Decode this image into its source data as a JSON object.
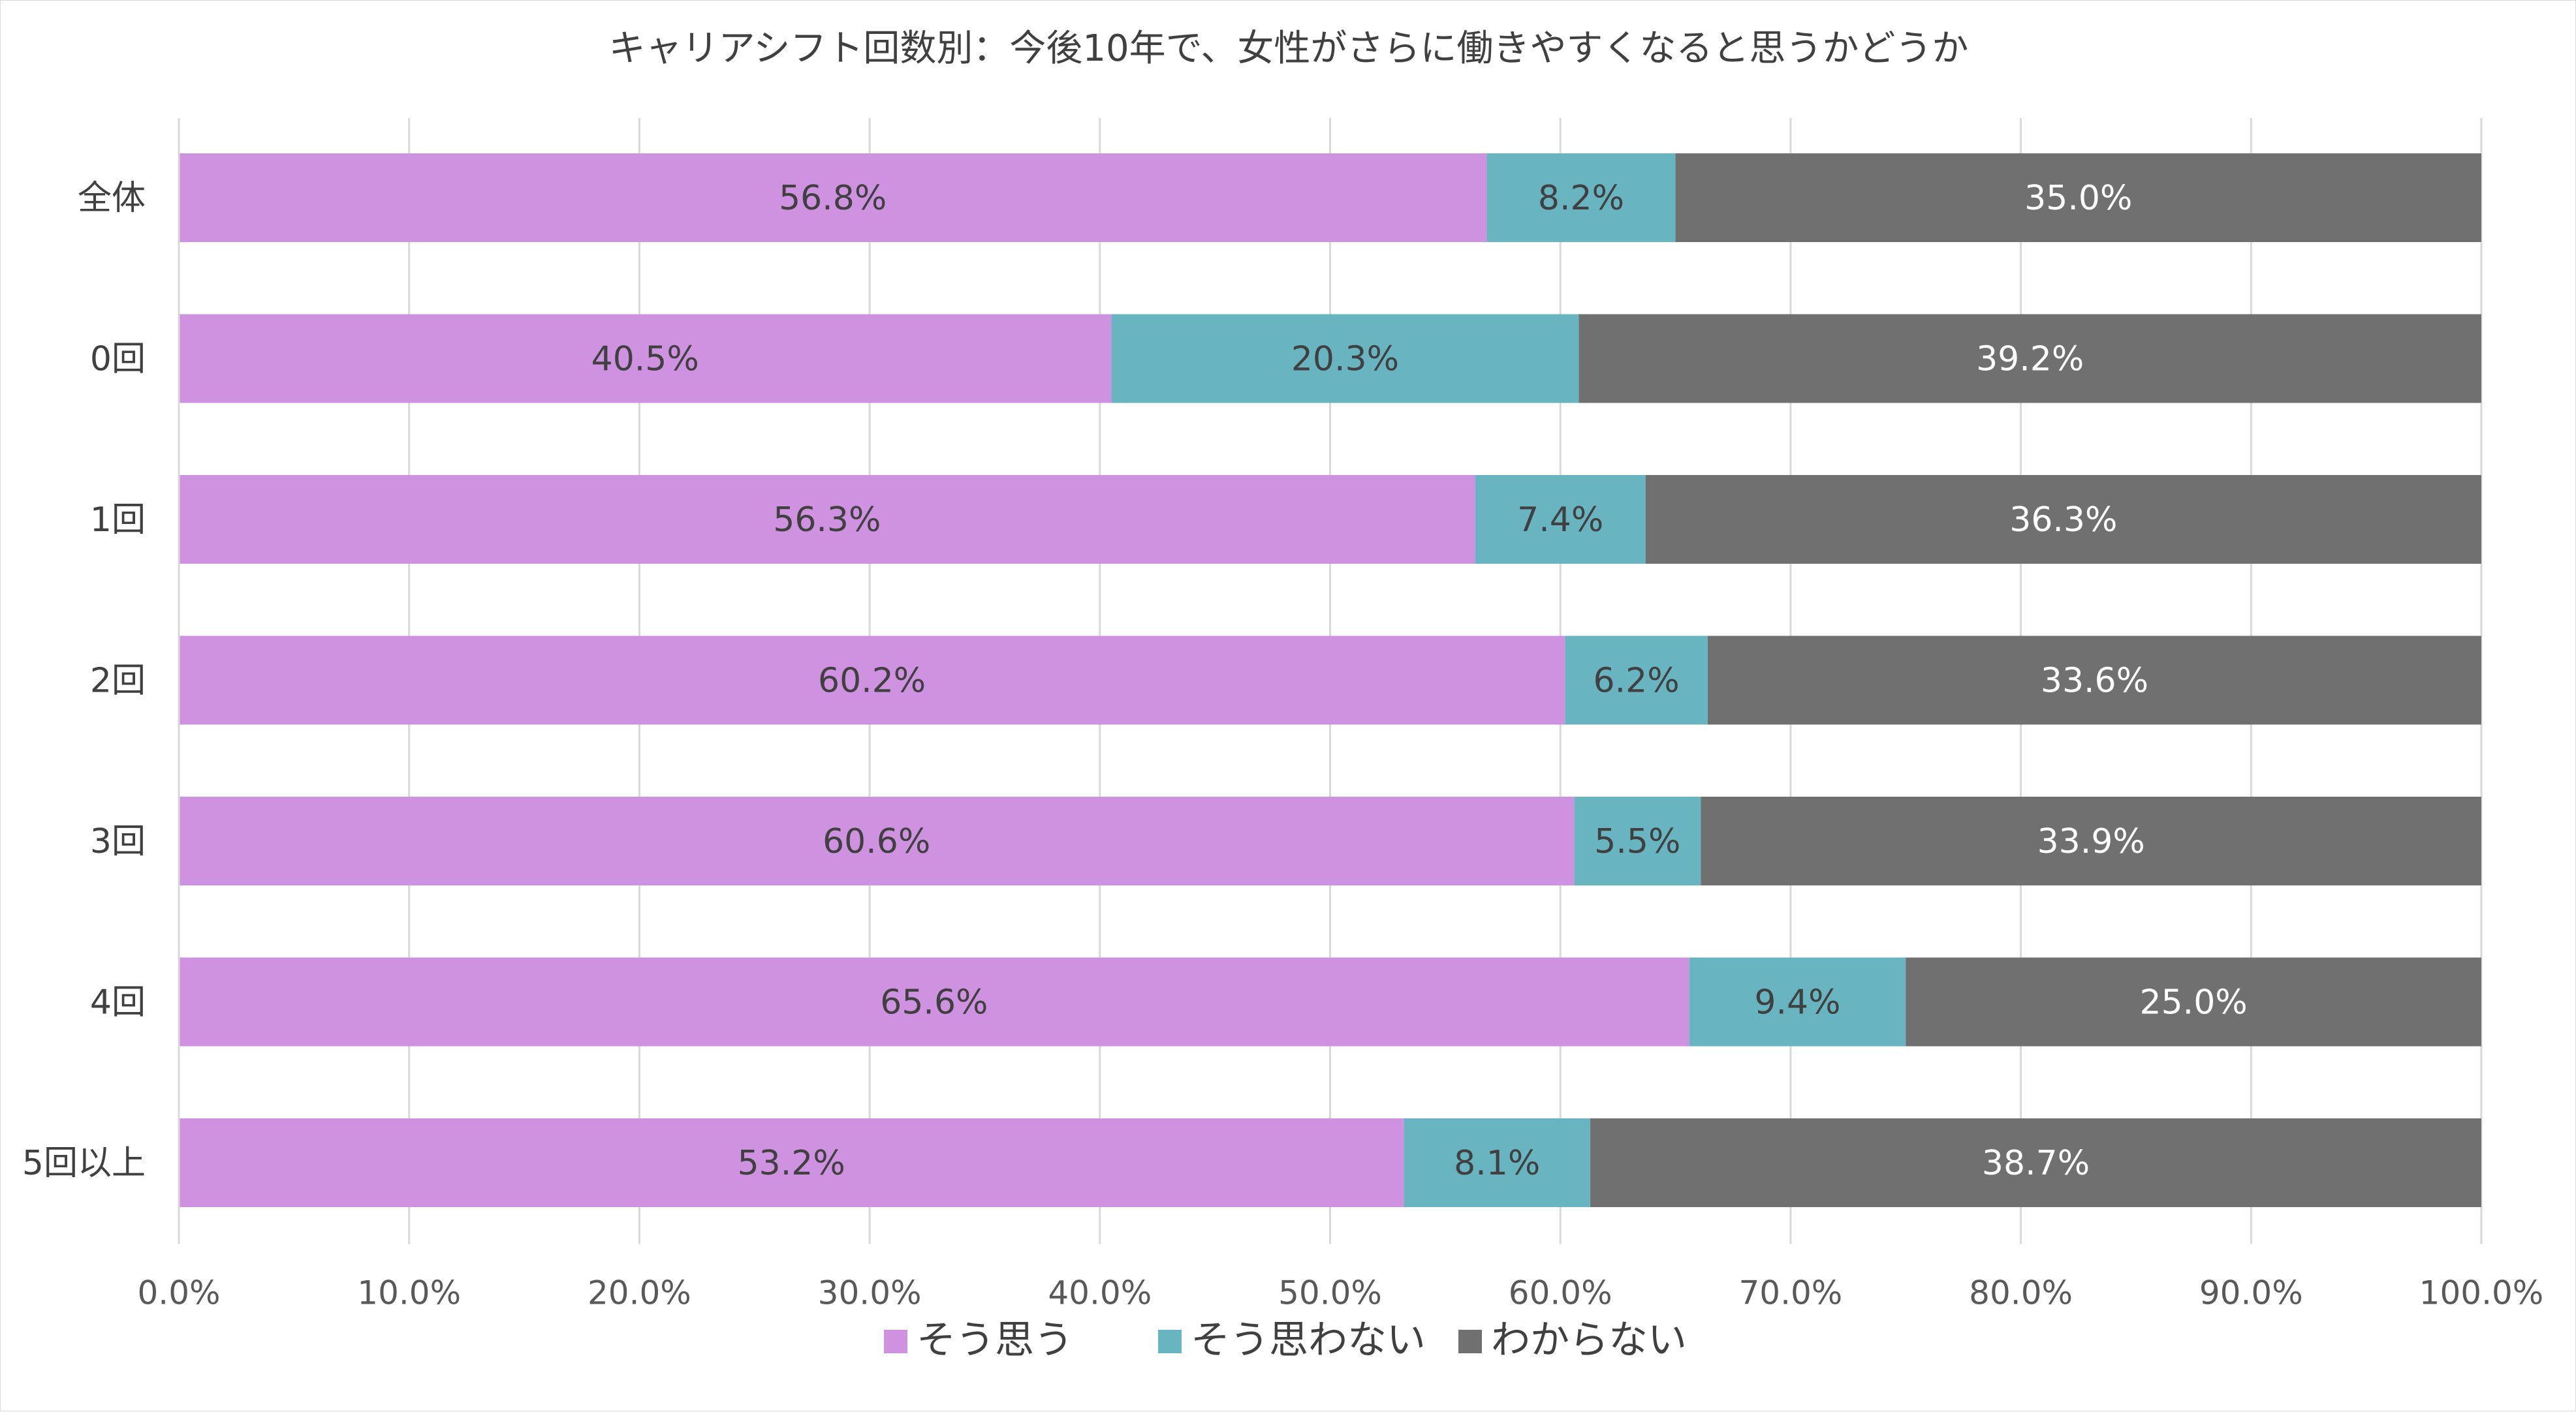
{
  "chart_data": {
    "type": "bar",
    "orientation": "horizontal",
    "stacked": "percent",
    "title": "キャリアシフト回数別：今後10年で、女性がさらに働きやすくなると思うかどうか",
    "categories": [
      "全体",
      "0回",
      "1回",
      "2回",
      "3回",
      "4回",
      "5回以上"
    ],
    "series": [
      {
        "name": "そう思う",
        "color": "#cf92e0",
        "values": [
          56.8,
          40.5,
          56.3,
          60.2,
          60.6,
          65.6,
          53.2
        ],
        "labels": [
          "56.8%",
          "40.5%",
          "56.3%",
          "60.2%",
          "60.6%",
          "65.6%",
          "53.2%"
        ]
      },
      {
        "name": "そう思わない",
        "color": "#68b4c1",
        "values": [
          8.2,
          20.3,
          7.4,
          6.2,
          5.5,
          9.4,
          8.1
        ],
        "labels": [
          "8.2%",
          "20.3%",
          "7.4%",
          "6.2%",
          "5.5%",
          "9.4%",
          "8.1%"
        ]
      },
      {
        "name": "わからない",
        "color": "#707070",
        "values": [
          35.0,
          39.2,
          36.3,
          33.6,
          33.9,
          25.0,
          38.7
        ],
        "labels": [
          "35.0%",
          "39.2%",
          "36.3%",
          "33.6%",
          "33.9%",
          "25.0%",
          "38.7%"
        ]
      }
    ],
    "xlim": [
      0,
      100
    ],
    "xticks": [
      "0.0%",
      "10.0%",
      "20.0%",
      "30.0%",
      "40.0%",
      "50.0%",
      "60.0%",
      "70.0%",
      "80.0%",
      "90.0%",
      "100.0%"
    ],
    "grid": true,
    "legend_position": "bottom",
    "label_colors": {
      "dark": "#404040",
      "light": "#ffffff",
      "axis": "#595959",
      "grid": "#d9d9d9"
    }
  }
}
